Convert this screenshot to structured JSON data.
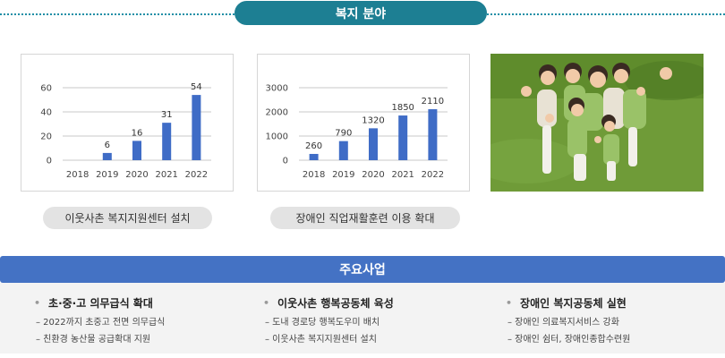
{
  "header": {
    "title": "복지 분야"
  },
  "captions": {
    "left": "이웃사촌 복지지원센터 설치",
    "middle": "장애인 직업재활훈련 이용 확대"
  },
  "main": {
    "title": "주요사업",
    "columns": [
      {
        "title": "초·중·고 의무급식 확대",
        "items": [
          "– 2022까지 초중고 전면 의무급식",
          "– 친환경 농산물 공급확대 지원"
        ]
      },
      {
        "title": "이웃사촌 행복공동체 육성",
        "items": [
          "– 도내 경로당 행복도우미 배치",
          "– 이웃사촌 복지지원센터 설치"
        ]
      },
      {
        "title": "장애인 복지공동체 실현",
        "items": [
          "– 장애인 의료복지서비스 강화",
          "– 장애인 쉼터, 장애인종합수련원"
        ]
      }
    ]
  },
  "colors": {
    "teal": "#1d7f93",
    "blue": "#4472c4",
    "bar": "#3f6cc6",
    "caption_bg": "#e3e3e3"
  },
  "chart_data": [
    {
      "type": "bar",
      "categories": [
        "2018",
        "2019",
        "2020",
        "2021",
        "2022"
      ],
      "values": [
        0,
        6,
        16,
        31,
        54
      ],
      "value_labels": [
        "",
        "6",
        "16",
        "31",
        "54"
      ],
      "yticks": [
        0,
        20,
        40,
        60
      ],
      "ylim": [
        0,
        60
      ],
      "grid": true
    },
    {
      "type": "bar",
      "categories": [
        "2018",
        "2019",
        "2020",
        "2021",
        "2022"
      ],
      "values": [
        260,
        790,
        1320,
        1850,
        2110
      ],
      "value_labels": [
        "260",
        "790",
        "1320",
        "1850",
        "2110"
      ],
      "yticks": [
        0,
        1000,
        2000,
        3000
      ],
      "ylim": [
        0,
        3000
      ],
      "grid": true
    }
  ]
}
